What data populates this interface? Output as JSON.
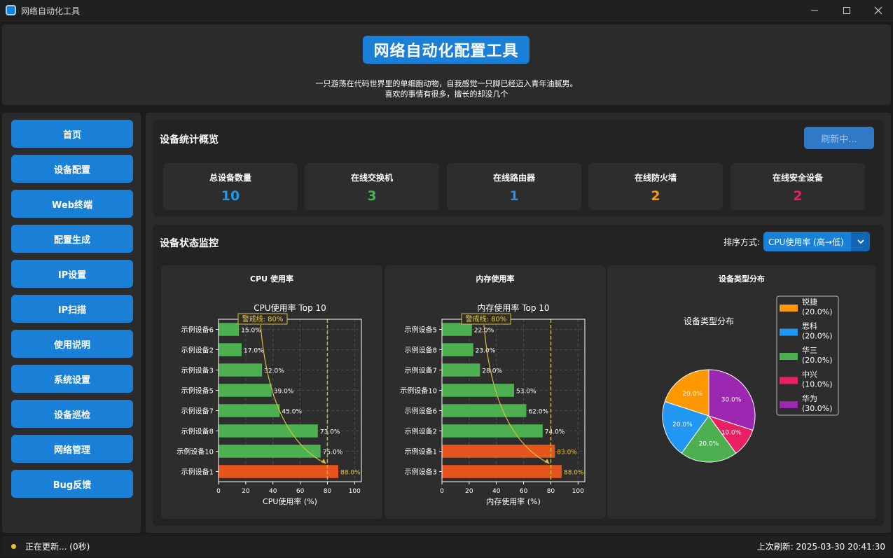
{
  "window": {
    "title": "网络自动化工具"
  },
  "header": {
    "title": "网络自动化配置工具",
    "subtitle_line1": "一只游荡在代码世界里的单细胞动物，自我感觉一只脚已经迈入青年油腻男。",
    "subtitle_line2": "喜欢的事情有很多，擅长的却没几个"
  },
  "sidebar": {
    "items": [
      {
        "label": "首页"
      },
      {
        "label": "设备配置"
      },
      {
        "label": "Web终端"
      },
      {
        "label": "配置生成"
      },
      {
        "label": "IP设置"
      },
      {
        "label": "IP扫描"
      },
      {
        "label": "使用说明"
      },
      {
        "label": "系统设置"
      },
      {
        "label": "设备巡检"
      },
      {
        "label": "网络管理"
      },
      {
        "label": "Bug反馈"
      }
    ]
  },
  "stats": {
    "title": "设备统计概览",
    "refresh_label": "刷新中...",
    "cards": [
      {
        "label": "总设备数量",
        "value": "10",
        "color": "#1e9be8"
      },
      {
        "label": "在线交换机",
        "value": "3",
        "color": "#4caf50"
      },
      {
        "label": "在线路由器",
        "value": "1",
        "color": "#2a8fe0"
      },
      {
        "label": "在线防火墙",
        "value": "2",
        "color": "#ff9800"
      },
      {
        "label": "在线安全设备",
        "value": "2",
        "color": "#e91e63"
      }
    ]
  },
  "monitor": {
    "title": "设备状态监控",
    "sort_label": "排序方式:",
    "sort_value": "CPU使用率 (高→低)"
  },
  "chart_data": [
    {
      "type": "bar",
      "card_title": "CPU 使用率",
      "title": "CPU使用率 Top 10",
      "xlabel": "CPU使用率 (%)",
      "xlim": [
        0,
        105
      ],
      "xticks": [
        0,
        20,
        40,
        60,
        80,
        100
      ],
      "categories": [
        "示例设备6",
        "示例设备2",
        "示例设备3",
        "示例设备5",
        "示例设备7",
        "示例设备8",
        "示例设备10",
        "示例设备1"
      ],
      "values": [
        15.0,
        17.0,
        32.0,
        39.0,
        45.0,
        73.0,
        75.0,
        88.0
      ],
      "value_labels": [
        "15.0%",
        "17.0%",
        "32.0%",
        "39.0%",
        "45.0%",
        "73.0%",
        "75.0%",
        "88.0%"
      ],
      "threshold": 80,
      "threshold_label": "警戒线: 80%",
      "normal_color": "#4caf50",
      "alert_color": "#e8541e",
      "threshold_color": "#c8b43c"
    },
    {
      "type": "bar",
      "card_title": "内存使用率",
      "title": "内存使用率 Top 10",
      "xlabel": "内存使用率 (%)",
      "xlim": [
        0,
        105
      ],
      "xticks": [
        0,
        20,
        40,
        60,
        80,
        100
      ],
      "categories": [
        "示例设备5",
        "示例设备8",
        "示例设备7",
        "示例设备10",
        "示例设备6",
        "示例设备2",
        "示例设备1",
        "示例设备3"
      ],
      "values": [
        22.0,
        23.0,
        28.0,
        53.0,
        62.0,
        74.0,
        83.0,
        88.0
      ],
      "value_labels": [
        "22.0%",
        "23.0%",
        "28.0%",
        "53.0%",
        "62.0%",
        "74.0%",
        "83.0%",
        "88.0%"
      ],
      "threshold": 80,
      "threshold_label": "警戒线: 80%",
      "normal_color": "#4caf50",
      "alert_color": "#e8541e",
      "threshold_color": "#c8b43c"
    },
    {
      "type": "pie",
      "card_title": "设备类型分布",
      "title": "设备类型分布",
      "slices": [
        {
          "name": "锐捷",
          "value": 20.0,
          "label": "20.0%",
          "legend": "(20.0%)",
          "color": "#ff9800"
        },
        {
          "name": "思科",
          "value": 20.0,
          "label": "20.0%",
          "legend": "(20.0%)",
          "color": "#2196f3"
        },
        {
          "name": "华三",
          "value": 20.0,
          "label": "20.0%",
          "legend": "(20.0%)",
          "color": "#4caf50"
        },
        {
          "name": "中兴",
          "value": 10.0,
          "label": "10.0%",
          "legend": "(10.0%)",
          "color": "#e91e63"
        },
        {
          "name": "华为",
          "value": 30.0,
          "label": "30.0%",
          "legend": "(30.0%)",
          "color": "#9c27b0"
        }
      ]
    }
  ],
  "status": {
    "left": "正在更新... (0秒)",
    "right": "上次刷新: 2025-03-30 20:41:30"
  }
}
